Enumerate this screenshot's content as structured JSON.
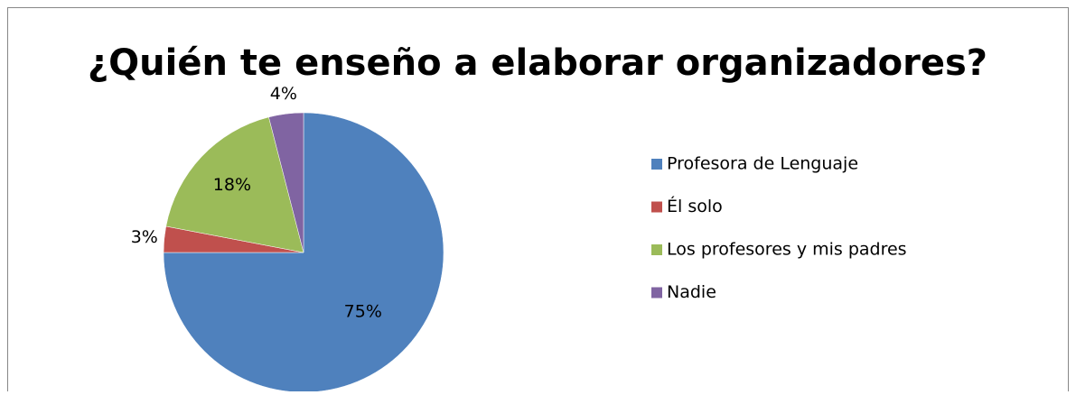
{
  "chart_data": {
    "type": "pie",
    "title": "¿Quién te enseño a elaborar organizadores?",
    "categories": [
      "Profesora de Lenguaje",
      "Él solo",
      "Los profesores y mis padres",
      "Nadie"
    ],
    "values": [
      75,
      3,
      18,
      4
    ],
    "value_labels": [
      "75%",
      "3%",
      "18%",
      "4%"
    ],
    "colors": [
      "#4f81bd",
      "#c0504d",
      "#9bbb59",
      "#8064a2"
    ],
    "legend": "right"
  }
}
